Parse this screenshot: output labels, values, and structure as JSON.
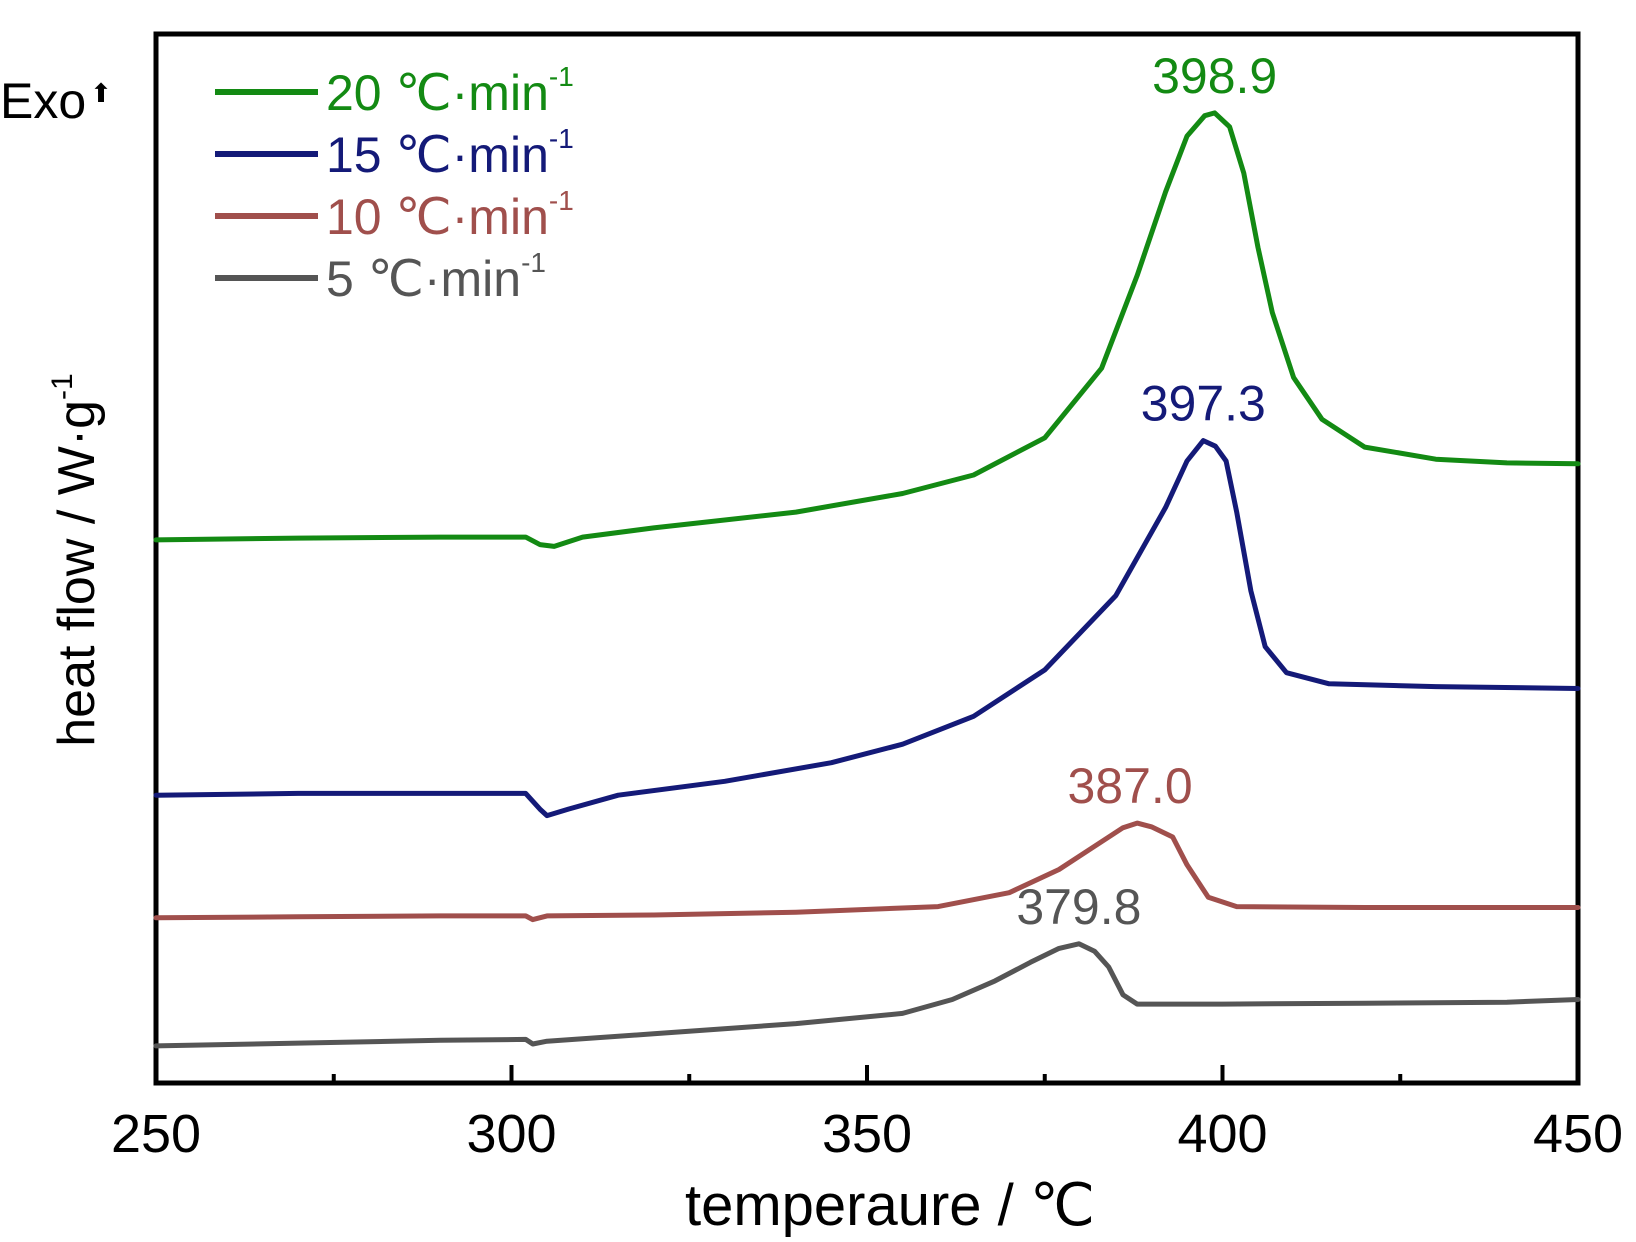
{
  "chart_data": {
    "type": "line",
    "xlabel": "temperaure / ℃",
    "ylabel": "heat flow / W·g",
    "ylabel_sup": "-1",
    "exo_label": "Exo",
    "exo_arrow": "⬆",
    "xlim": [
      250,
      450
    ],
    "x_ticks": [
      250,
      300,
      350,
      400,
      450
    ],
    "x_minor_ticks": [
      275,
      325,
      375,
      425
    ],
    "y_ticks_shown": false,
    "grid": false,
    "legend_position": "top-left",
    "series": [
      {
        "name": "20 ℃·min",
        "name_sup": "-1",
        "color": "#138a13",
        "peak_label": "398.9",
        "peak_x": 398.9,
        "points": [
          [
            250,
            5.85
          ],
          [
            270,
            5.87
          ],
          [
            290,
            5.88
          ],
          [
            302,
            5.88
          ],
          [
            304,
            5.8
          ],
          [
            306,
            5.78
          ],
          [
            310,
            5.88
          ],
          [
            320,
            5.98
          ],
          [
            340,
            6.15
          ],
          [
            355,
            6.35
          ],
          [
            365,
            6.55
          ],
          [
            375,
            6.95
          ],
          [
            383,
            7.7
          ],
          [
            388,
            8.7
          ],
          [
            392,
            9.6
          ],
          [
            395,
            10.2
          ],
          [
            397.5,
            10.42
          ],
          [
            398.9,
            10.45
          ],
          [
            401,
            10.3
          ],
          [
            403,
            9.8
          ],
          [
            405,
            9.0
          ],
          [
            407,
            8.3
          ],
          [
            410,
            7.6
          ],
          [
            414,
            7.15
          ],
          [
            420,
            6.85
          ],
          [
            430,
            6.72
          ],
          [
            440,
            6.68
          ],
          [
            450,
            6.67
          ]
        ]
      },
      {
        "name": "15 ℃·min",
        "name_sup": "-1",
        "color": "#141a78",
        "peak_label": "397.3",
        "peak_x": 397.3,
        "points": [
          [
            250,
            3.1
          ],
          [
            270,
            3.12
          ],
          [
            290,
            3.12
          ],
          [
            302,
            3.12
          ],
          [
            304,
            2.95
          ],
          [
            305,
            2.88
          ],
          [
            308,
            2.95
          ],
          [
            315,
            3.1
          ],
          [
            330,
            3.25
          ],
          [
            345,
            3.45
          ],
          [
            355,
            3.65
          ],
          [
            365,
            3.95
          ],
          [
            375,
            4.45
          ],
          [
            385,
            5.25
          ],
          [
            392,
            6.2
          ],
          [
            395,
            6.7
          ],
          [
            397.3,
            6.92
          ],
          [
            399,
            6.86
          ],
          [
            400.5,
            6.7
          ],
          [
            402,
            6.15
          ],
          [
            404,
            5.3
          ],
          [
            406,
            4.7
          ],
          [
            409,
            4.42
          ],
          [
            415,
            4.3
          ],
          [
            430,
            4.27
          ],
          [
            450,
            4.25
          ]
        ]
      },
      {
        "name": "10 ℃·min",
        "name_sup": "-1",
        "color": "#a04f4c",
        "peak_label": "387.0",
        "peak_x": 387.0,
        "points": [
          [
            250,
            1.78
          ],
          [
            270,
            1.79
          ],
          [
            290,
            1.8
          ],
          [
            302,
            1.8
          ],
          [
            303,
            1.76
          ],
          [
            305,
            1.8
          ],
          [
            320,
            1.81
          ],
          [
            340,
            1.84
          ],
          [
            360,
            1.9
          ],
          [
            370,
            2.05
          ],
          [
            377,
            2.3
          ],
          [
            382,
            2.55
          ],
          [
            386,
            2.75
          ],
          [
            388,
            2.8
          ],
          [
            390,
            2.76
          ],
          [
            393,
            2.65
          ],
          [
            395,
            2.35
          ],
          [
            398,
            2.0
          ],
          [
            402,
            1.9
          ],
          [
            420,
            1.89
          ],
          [
            450,
            1.89
          ]
        ]
      },
      {
        "name": "5 ℃·min",
        "name_sup": "-1",
        "color": "#555555",
        "peak_label": "379.8",
        "peak_x": 379.8,
        "points": [
          [
            250,
            0.4
          ],
          [
            270,
            0.43
          ],
          [
            290,
            0.46
          ],
          [
            302,
            0.47
          ],
          [
            303,
            0.42
          ],
          [
            305,
            0.45
          ],
          [
            320,
            0.53
          ],
          [
            340,
            0.64
          ],
          [
            355,
            0.75
          ],
          [
            362,
            0.9
          ],
          [
            368,
            1.1
          ],
          [
            373,
            1.3
          ],
          [
            377,
            1.45
          ],
          [
            379.8,
            1.5
          ],
          [
            382,
            1.42
          ],
          [
            384,
            1.25
          ],
          [
            386,
            0.95
          ],
          [
            388,
            0.85
          ],
          [
            400,
            0.85
          ],
          [
            420,
            0.86
          ],
          [
            440,
            0.87
          ],
          [
            450,
            0.9
          ]
        ]
      }
    ]
  }
}
